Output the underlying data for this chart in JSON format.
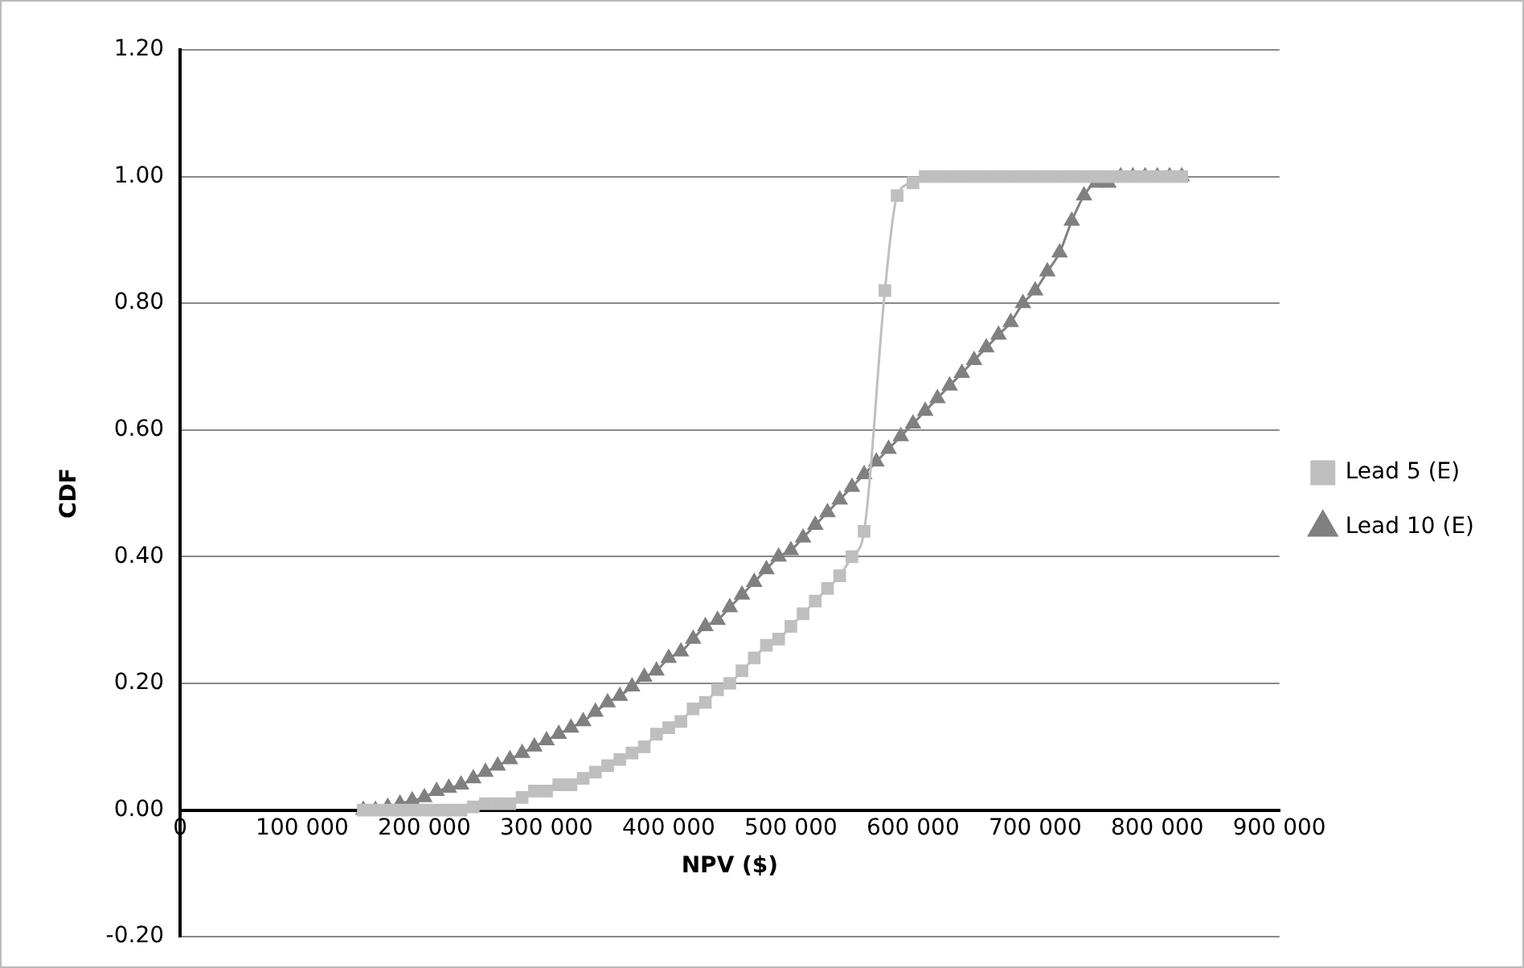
{
  "chart_data": {
    "type": "line",
    "xlabel": "NPV ($)",
    "ylabel": "CDF",
    "xlim": [
      0,
      900000
    ],
    "xticks": [
      0,
      {
        "value": 100000,
        "label": "100 000"
      },
      {
        "value": 200000,
        "label": "200 000"
      },
      {
        "value": 300000,
        "label": "300 000"
      },
      {
        "value": 400000,
        "label": "400 000"
      },
      {
        "value": 500000,
        "label": "500 000"
      },
      {
        "value": 600000,
        "label": "600 000"
      },
      {
        "value": 700000,
        "label": "700 000"
      },
      {
        "value": 800000,
        "label": "800 000"
      },
      {
        "value": 900000,
        "label": "900 000"
      }
    ],
    "ylim": [
      -0.2,
      1.2
    ],
    "yticks": [
      {
        "value": -0.2,
        "label": "-0.20"
      },
      {
        "value": 0,
        "label": "0.00"
      },
      {
        "value": 0.2,
        "label": "0.20"
      },
      {
        "value": 0.4,
        "label": "0.40"
      },
      {
        "value": 0.6,
        "label": "0.60"
      },
      {
        "value": 0.8,
        "label": "0.80"
      },
      {
        "value": 1,
        "label": "1.00"
      },
      {
        "value": 1.2,
        "label": "1.20"
      }
    ],
    "grid": "y",
    "legend": "right",
    "series": [
      {
        "name": "Lead 5 (E)",
        "color": "#bfbfbf",
        "marker": "square",
        "x": [
          150000,
          160000,
          170000,
          180000,
          190000,
          200000,
          210000,
          220000,
          230000,
          240000,
          250000,
          260000,
          270000,
          280000,
          290000,
          300000,
          310000,
          320000,
          330000,
          340000,
          350000,
          360000,
          370000,
          380000,
          390000,
          400000,
          410000,
          420000,
          430000,
          440000,
          450000,
          460000,
          470000,
          480000,
          490000,
          500000,
          510000,
          520000,
          530000,
          540000,
          550000,
          560000,
          577000,
          587000,
          600000,
          610000,
          620000,
          630000,
          640000,
          650000,
          660000,
          670000,
          680000,
          690000,
          700000,
          710000,
          720000,
          730000,
          740000,
          750000,
          760000,
          770000,
          780000,
          790000,
          800000,
          810000,
          820000
        ],
        "values": [
          0,
          0,
          0,
          0,
          0,
          0,
          0,
          0,
          0,
          0.005,
          0.01,
          0.01,
          0.01,
          0.02,
          0.03,
          0.03,
          0.04,
          0.04,
          0.05,
          0.06,
          0.07,
          0.08,
          0.09,
          0.1,
          0.12,
          0.13,
          0.14,
          0.16,
          0.17,
          0.19,
          0.2,
          0.22,
          0.24,
          0.26,
          0.27,
          0.29,
          0.31,
          0.33,
          0.35,
          0.37,
          0.4,
          0.44,
          0.82,
          0.97,
          0.99,
          1,
          1,
          1,
          1,
          1,
          1,
          1,
          1,
          1,
          1,
          1,
          1,
          1,
          1,
          1,
          1,
          1,
          1,
          1,
          1,
          1,
          1
        ]
      },
      {
        "name": "Lead 10 (E)",
        "color": "#808080",
        "marker": "triangle",
        "x": [
          150000,
          160000,
          170000,
          180000,
          190000,
          200000,
          210000,
          220000,
          230000,
          240000,
          250000,
          260000,
          270000,
          280000,
          290000,
          300000,
          310000,
          320000,
          330000,
          340000,
          350000,
          360000,
          370000,
          380000,
          390000,
          400000,
          410000,
          420000,
          430000,
          440000,
          450000,
          460000,
          470000,
          480000,
          490000,
          500000,
          510000,
          520000,
          530000,
          540000,
          550000,
          560000,
          570000,
          580000,
          590000,
          600000,
          610000,
          620000,
          630000,
          640000,
          650000,
          660000,
          670000,
          680000,
          690000,
          700000,
          710000,
          720000,
          730000,
          740000,
          750000,
          760000,
          770000,
          780000,
          790000,
          800000,
          810000,
          820000
        ],
        "values": [
          0,
          0,
          0.005,
          0.01,
          0.015,
          0.02,
          0.03,
          0.035,
          0.04,
          0.05,
          0.06,
          0.07,
          0.08,
          0.09,
          0.1,
          0.11,
          0.12,
          0.13,
          0.14,
          0.155,
          0.17,
          0.18,
          0.195,
          0.21,
          0.22,
          0.24,
          0.25,
          0.27,
          0.29,
          0.3,
          0.32,
          0.34,
          0.36,
          0.38,
          0.4,
          0.41,
          0.43,
          0.45,
          0.47,
          0.49,
          0.51,
          0.53,
          0.55,
          0.57,
          0.59,
          0.61,
          0.63,
          0.65,
          0.67,
          0.69,
          0.71,
          0.73,
          0.75,
          0.77,
          0.8,
          0.82,
          0.85,
          0.88,
          0.93,
          0.97,
          0.99,
          0.99,
          1,
          1,
          1,
          1,
          1,
          1
        ]
      }
    ]
  }
}
